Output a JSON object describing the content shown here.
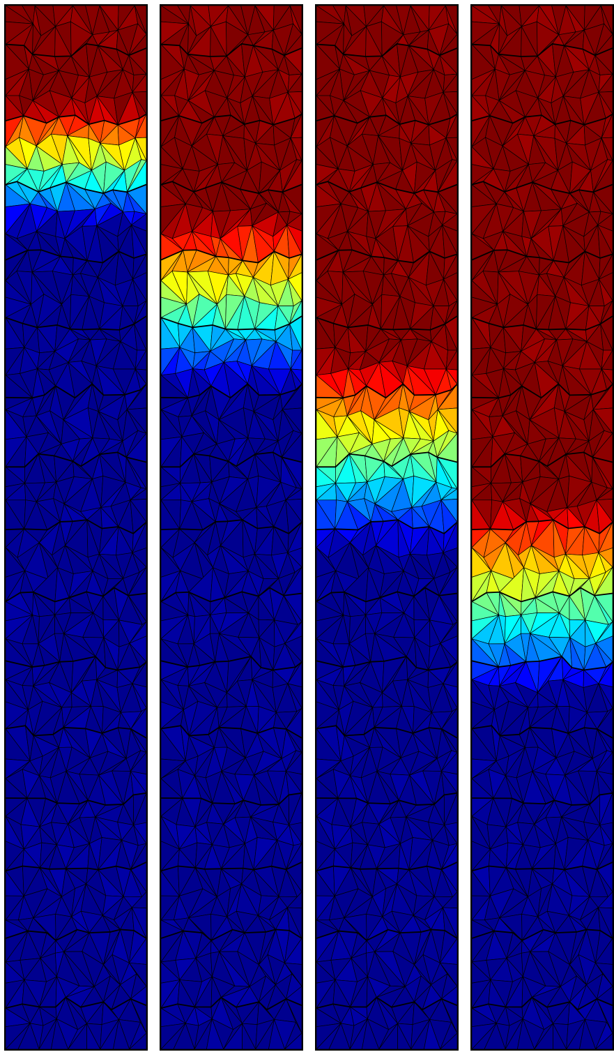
{
  "figure": {
    "panel_count": 4,
    "colormap": [
      "#00008F",
      "#0000FF",
      "#0080FF",
      "#00FFFF",
      "#80FF80",
      "#FFFF00",
      "#FF8000",
      "#FF0000",
      "#800000"
    ],
    "mesh_line_color": "#000000",
    "front_line_color": "#000000",
    "panels": [
      {
        "id": "panel-1",
        "hot_front_depth": 0.155,
        "transition_width": 0.12
      },
      {
        "id": "panel-2",
        "hot_front_depth": 0.285,
        "transition_width": 0.17
      },
      {
        "id": "panel-3",
        "hot_front_depth": 0.43,
        "transition_width": 0.19
      },
      {
        "id": "panel-4",
        "hot_front_depth": 0.57,
        "transition_width": 0.19
      }
    ]
  }
}
